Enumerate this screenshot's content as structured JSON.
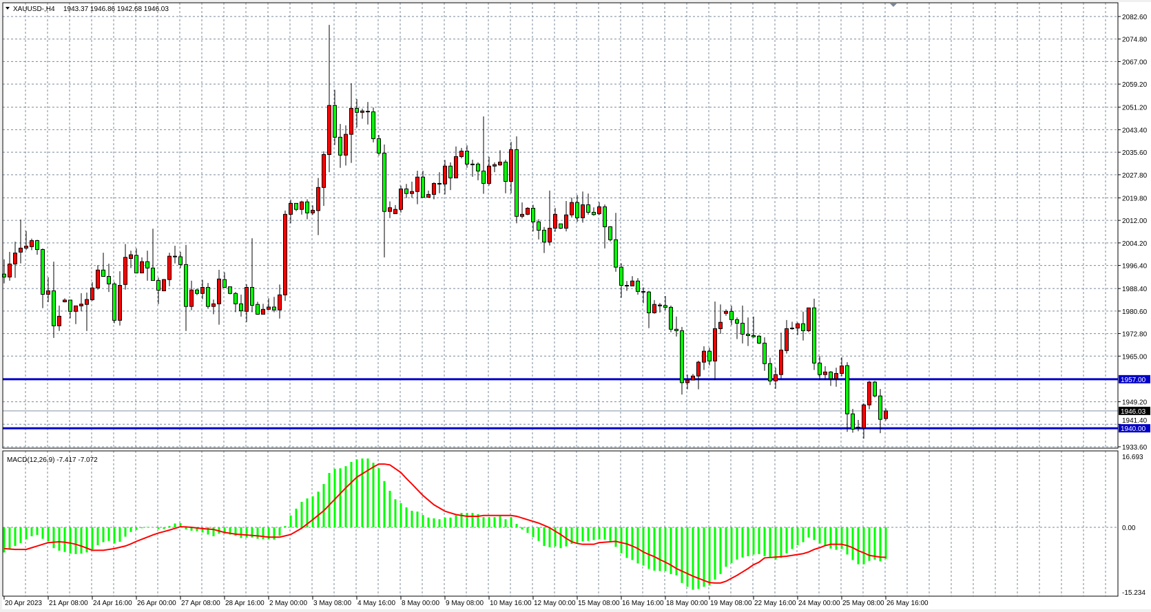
{
  "header": {
    "symbol": "XAUUSD-,H4",
    "ohlc": "1943.37 1946.86 1942.68 1946.03",
    "menu_icon": "triangle-down-icon"
  },
  "macd_header": {
    "label": "MACD(12,26,9) -7.417 -7.072"
  },
  "colors": {
    "bull": "#ff0000",
    "bear": "#00ff00",
    "grid": "#77889a",
    "level_line": "#0000c8",
    "bid_line": "#8090a0",
    "signal": "#ff0000",
    "histogram": "#00ff00"
  },
  "price_axis": {
    "labels": [
      "2082.60",
      "2074.80",
      "2067.00",
      "2059.20",
      "2051.20",
      "2043.40",
      "2035.60",
      "2027.80",
      "2019.80",
      "2012.00",
      "2004.20",
      "1996.40",
      "1988.40",
      "1980.60",
      "1972.80",
      "1965.00",
      "1949.20",
      "1941.40",
      "1933.60"
    ],
    "range": [
      1933.6,
      2082.6
    ]
  },
  "levels": [
    {
      "price": 1957.0,
      "label": "1957.00"
    },
    {
      "price": 1940.0,
      "label": "1940.00"
    }
  ],
  "bid": {
    "price": 1946.03,
    "label": "1946.03"
  },
  "macd_axis": {
    "labels": [
      {
        "value": 16.693,
        "text": "16.693"
      },
      {
        "value": 0,
        "text": "0.00"
      },
      {
        "value": -15.234,
        "text": "-15.234"
      }
    ]
  },
  "time_axis": {
    "labels": [
      "20 Apr 2023",
      "21 Apr 08:00",
      "24 Apr 16:00",
      "26 Apr 00:00",
      "27 Apr 08:00",
      "28 Apr 16:00",
      "2 May 00:00",
      "3 May 08:00",
      "4 May 16:00",
      "8 May 00:00",
      "9 May 08:00",
      "10 May 16:00",
      "12 May 00:00",
      "15 May 08:00",
      "16 May 16:00",
      "18 May 00:00",
      "19 May 08:00",
      "22 May 16:00",
      "24 May 00:00",
      "25 May 08:00",
      "26 May 16:00"
    ],
    "bars_per_label": 8
  },
  "chart_data": {
    "type": "candlestick",
    "timeframe": "H4",
    "ohlc": [
      [
        1993.4,
        1998.5,
        1990.2,
        1992.4
      ],
      [
        1992.4,
        2001.1,
        1991.1,
        1996.9
      ],
      [
        1996.9,
        2004.6,
        1992.1,
        2000.7
      ],
      [
        2001.0,
        2012.3,
        1997.1,
        2002.4
      ],
      [
        2002.4,
        2008.3,
        2001.7,
        2003.1
      ],
      [
        2002.9,
        2005.7,
        2001.7,
        2005.0
      ],
      [
        2005.0,
        2005.3,
        2000.1,
        2001.9
      ],
      [
        2001.9,
        2002.3,
        1981.6,
        1986.4
      ],
      [
        1986.4,
        1992.3,
        1983.7,
        1987.6
      ],
      [
        1987.6,
        1997.7,
        1971.3,
        1975.5
      ],
      [
        1975.5,
        1982.5,
        1973.7,
        1978.8
      ],
      [
        1983.8,
        1985.0,
        1983.6,
        1984.4
      ],
      [
        1984.4,
        1984.4,
        1978.1,
        1980.5
      ],
      [
        1980.5,
        1982.4,
        1976.1,
        1982.4
      ],
      [
        1982.4,
        1986.8,
        1980.5,
        1983.0
      ],
      [
        1982.9,
        1987.0,
        1973.7,
        1984.6
      ],
      [
        1984.5,
        1990.6,
        1984.2,
        1988.6
      ],
      [
        1988.6,
        1996.5,
        1988.0,
        1994.8
      ],
      [
        1994.8,
        2000.8,
        1992.6,
        1992.6
      ],
      [
        1992.6,
        1997.0,
        1987.2,
        1990.0
      ],
      [
        1990.0,
        1990.7,
        1976.4,
        1977.4
      ],
      [
        1977.4,
        1994.4,
        1975.6,
        1989.5
      ],
      [
        1989.8,
        2003.8,
        1988.0,
        1999.2
      ],
      [
        1998.8,
        2001.5,
        1995.5,
        2000.1
      ],
      [
        1999.9,
        2002.3,
        1993.8,
        1993.8
      ],
      [
        1993.8,
        1999.2,
        1993.8,
        1997.7
      ],
      [
        1997.7,
        2001.5,
        1991.1,
        1995.5
      ],
      [
        1995.5,
        2009.1,
        1991.2,
        1991.2
      ],
      [
        1991.2,
        1992.2,
        1983.0,
        1987.8
      ],
      [
        1987.6,
        1991.7,
        1987.6,
        1991.5
      ],
      [
        1991.5,
        2000.8,
        1989.2,
        1999.6
      ],
      [
        1999.4,
        2003.2,
        1997.1,
        1999.6
      ],
      [
        1999.4,
        2001.1,
        1995.5,
        1996.7
      ],
      [
        1996.7,
        2003.5,
        1973.7,
        1982.2
      ],
      [
        1982.2,
        1991.1,
        1980.9,
        1987.9
      ],
      [
        1987.9,
        1988.4,
        1986.1,
        1986.7
      ],
      [
        1986.7,
        1991.4,
        1984.7,
        1988.8
      ],
      [
        1988.8,
        1990.3,
        1981.4,
        1982.2
      ],
      [
        1982.2,
        1984.6,
        1979.5,
        1983.1
      ],
      [
        1983.1,
        1994.9,
        1975.9,
        1991.7
      ],
      [
        1991.5,
        1994.0,
        1988.8,
        1988.8
      ],
      [
        1989.0,
        1989.1,
        1986.4,
        1986.7
      ],
      [
        1986.7,
        1987.2,
        1980.2,
        1983.1
      ],
      [
        1983.1,
        1986.3,
        1978.7,
        1980.7
      ],
      [
        1980.5,
        1989.9,
        1976.8,
        1988.8
      ],
      [
        1988.8,
        2005.8,
        1980.2,
        1982.6
      ],
      [
        1982.9,
        1983.8,
        1979.3,
        1979.5
      ],
      [
        1979.5,
        1983.1,
        1979.5,
        1981.2
      ],
      [
        1981.2,
        1985.0,
        1981.0,
        1982.0
      ],
      [
        1982.0,
        1985.5,
        1980.2,
        1981.0
      ],
      [
        1981.0,
        1989.8,
        1978.0,
        1986.2
      ],
      [
        1986.2,
        2015.4,
        1984.1,
        2014.1
      ],
      [
        2014.1,
        2019.2,
        2011.0,
        2017.9
      ],
      [
        2017.9,
        2017.9,
        2015.2,
        2015.8
      ],
      [
        2015.8,
        2018.8,
        2014.0,
        2018.4
      ],
      [
        2018.4,
        2019.3,
        2012.4,
        2014.6
      ],
      [
        2014.6,
        2017.2,
        2013.9,
        2015.5
      ],
      [
        2015.4,
        2026.7,
        2006.9,
        2023.4
      ],
      [
        2023.4,
        2035.9,
        2017.0,
        2034.8
      ],
      [
        2034.8,
        2079.7,
        2028.7,
        2051.8
      ],
      [
        2051.8,
        2057.2,
        2038.1,
        2040.8
      ],
      [
        2040.8,
        2045.4,
        2030.2,
        2034.6
      ],
      [
        2034.6,
        2044.9,
        2031.0,
        2041.8
      ],
      [
        2041.8,
        2059.5,
        2031.9,
        2050.8
      ],
      [
        2050.8,
        2054.0,
        2044.2,
        2049.4
      ],
      [
        2049.4,
        2050.7,
        2047.2,
        2049.9
      ],
      [
        2049.6,
        2053.0,
        2045.2,
        2049.8
      ],
      [
        2049.6,
        2051.1,
        2039.0,
        2040.3
      ],
      [
        2040.3,
        2041.6,
        2034.4,
        2035.3
      ],
      [
        2035.3,
        2038.3,
        1999.2,
        2015.1
      ],
      [
        2015.1,
        2018.6,
        2012.8,
        2016.4
      ],
      [
        2014.3,
        2017.3,
        2014.3,
        2015.8
      ],
      [
        2015.8,
        2024.0,
        2014.7,
        2022.9
      ],
      [
        2022.9,
        2024.6,
        2019.7,
        2021.3
      ],
      [
        2021.3,
        2025.4,
        2019.8,
        2022.0
      ],
      [
        2022.0,
        2029.2,
        2017.6,
        2027.0
      ],
      [
        2027.0,
        2029.2,
        2020.0,
        2020.0
      ],
      [
        2020.0,
        2022.3,
        2020.0,
        2021.0
      ],
      [
        2021.0,
        2025.2,
        2019.3,
        2024.8
      ],
      [
        2024.6,
        2028.7,
        2021.4,
        2024.8
      ],
      [
        2024.6,
        2032.9,
        2021.0,
        2030.8
      ],
      [
        2030.8,
        2032.1,
        2022.5,
        2026.7
      ],
      [
        2026.7,
        2037.6,
        2026.7,
        2034.1
      ],
      [
        2034.1,
        2037.1,
        2033.5,
        2036.0
      ],
      [
        2036.0,
        2038.0,
        2030.2,
        2031.5
      ],
      [
        2031.4,
        2033.0,
        2027.1,
        2031.5
      ],
      [
        2031.5,
        2032.1,
        2025.9,
        2029.1
      ],
      [
        2029.1,
        2048.0,
        2021.2,
        2024.8
      ],
      [
        2024.8,
        2034.0,
        2024.1,
        2030.8
      ],
      [
        2030.8,
        2032.1,
        2028.7,
        2031.3
      ],
      [
        2031.2,
        2036.3,
        2030.9,
        2032.2
      ],
      [
        2032.2,
        2033.0,
        2021.4,
        2025.5
      ],
      [
        2025.5,
        2039.2,
        2021.4,
        2036.5
      ],
      [
        2036.5,
        2041.1,
        2011.0,
        2013.4
      ],
      [
        2013.4,
        2018.2,
        2012.7,
        2014.1
      ],
      [
        2014.1,
        2016.6,
        2013.8,
        2016.2
      ],
      [
        2016.2,
        2017.4,
        2008.2,
        2011.5
      ],
      [
        2011.5,
        2012.4,
        2005.4,
        2008.6
      ],
      [
        2008.6,
        2009.7,
        2000.7,
        2004.5
      ],
      [
        2004.5,
        2022.3,
        2003.3,
        2009.3
      ],
      [
        2009.3,
        2016.3,
        2008.1,
        2014.1
      ],
      [
        2010.8,
        2010.8,
        2009.0,
        2009.3
      ],
      [
        2009.3,
        2018.7,
        2008.2,
        2013.9
      ],
      [
        2013.9,
        2019.9,
        2013.0,
        2018.2
      ],
      [
        2018.2,
        2020.8,
        2011.5,
        2012.9
      ],
      [
        2012.9,
        2022.0,
        2011.2,
        2017.4
      ],
      [
        2017.4,
        2021.3,
        2014.0,
        2014.8
      ],
      [
        2014.8,
        2016.5,
        2013.6,
        2014.0
      ],
      [
        2014.3,
        2018.3,
        2013.9,
        2016.7
      ],
      [
        2016.7,
        2017.5,
        2002.3,
        2009.8
      ],
      [
        2009.8,
        2010.0,
        2004.7,
        2005.3
      ],
      [
        2005.3,
        2014.6,
        1994.2,
        1995.8
      ],
      [
        1995.8,
        1997.1,
        1985.2,
        1989.5
      ],
      [
        1989.5,
        1991.0,
        1987.6,
        1989.3
      ],
      [
        1989.3,
        1992.7,
        1989.3,
        1991.0
      ],
      [
        1991.0,
        1992.0,
        1986.3,
        1987.4
      ],
      [
        1987.4,
        1988.8,
        1983.3,
        1987.2
      ],
      [
        1987.2,
        1987.6,
        1974.7,
        1980.0
      ],
      [
        1980.0,
        1984.4,
        1979.7,
        1982.9
      ],
      [
        1982.4,
        1983.4,
        1980.1,
        1982.7
      ],
      [
        1982.5,
        1985.8,
        1980.9,
        1981.9
      ],
      [
        1981.9,
        1982.5,
        1973.3,
        1974.3
      ],
      [
        1974.3,
        1978.7,
        1971.8,
        1973.8
      ],
      [
        1973.8,
        1975.1,
        1951.7,
        1955.8
      ],
      [
        1955.8,
        1958.6,
        1953.5,
        1956.7
      ],
      [
        1956.7,
        1958.8,
        1956.7,
        1958.1
      ],
      [
        1958.1,
        1963.4,
        1953.5,
        1962.9
      ],
      [
        1962.9,
        1968.4,
        1960.2,
        1966.7
      ],
      [
        1966.7,
        1967.9,
        1961.8,
        1963.3
      ],
      [
        1963.3,
        1983.9,
        1956.7,
        1974.5
      ],
      [
        1974.5,
        1982.9,
        1972.7,
        1976.7
      ],
      [
        1979.8,
        1981.2,
        1979.0,
        1980.5
      ],
      [
        1980.5,
        1982.4,
        1975.7,
        1977.6
      ],
      [
        1977.6,
        1978.4,
        1970.9,
        1976.4
      ],
      [
        1976.4,
        1982.5,
        1969.4,
        1972.6
      ],
      [
        1972.6,
        1978.4,
        1968.5,
        1972.1
      ],
      [
        1972.1,
        1978.7,
        1971.4,
        1971.7
      ],
      [
        1971.9,
        1972.3,
        1969.2,
        1969.5
      ],
      [
        1969.5,
        1971.5,
        1959.9,
        1962.4
      ],
      [
        1962.4,
        1964.4,
        1955.0,
        1956.4
      ],
      [
        1956.4,
        1961.0,
        1953.7,
        1958.6
      ],
      [
        1958.6,
        1973.1,
        1957.3,
        1967.1
      ],
      [
        1966.9,
        1977.5,
        1965.9,
        1974.5
      ],
      [
        1974.5,
        1976.9,
        1974.1,
        1974.7
      ],
      [
        1974.7,
        1976.7,
        1972.3,
        1976.2
      ],
      [
        1976.2,
        1980.4,
        1970.4,
        1973.8
      ],
      [
        1973.8,
        1981.7,
        1973.3,
        1981.7
      ],
      [
        1981.7,
        1984.9,
        1960.2,
        1962.6
      ],
      [
        1962.6,
        1965.1,
        1956.8,
        1958.6
      ],
      [
        1958.6,
        1961.5,
        1956.8,
        1959.5
      ],
      [
        1959.5,
        1959.8,
        1954.7,
        1957.2
      ],
      [
        1957.2,
        1961.0,
        1954.4,
        1959.0
      ],
      [
        1959.0,
        1964.6,
        1958.0,
        1961.6
      ],
      [
        1961.7,
        1962.9,
        1938.8,
        1945.0
      ],
      [
        1945.0,
        1946.7,
        1938.5,
        1939.7
      ],
      [
        1940.1,
        1942.9,
        1939.0,
        1940.4
      ],
      [
        1940.1,
        1948.6,
        1936.4,
        1948.1
      ],
      [
        1948.1,
        1956.4,
        1946.6,
        1956.0
      ],
      [
        1956.0,
        1956.4,
        1950.7,
        1951.2
      ],
      [
        1951.2,
        1953.6,
        1938.3,
        1943.1
      ],
      [
        1943.37,
        1946.86,
        1942.68,
        1946.03
      ]
    ],
    "macd": {
      "name": "MACD(12,26,9)",
      "range": [
        -15.234,
        16.693
      ],
      "histogram": [
        -5.9,
        -5.1,
        -4.4,
        -3.7,
        -2.8,
        -2.1,
        -1.8,
        -2.7,
        -3.3,
        -4.9,
        -5.5,
        -5.8,
        -6.2,
        -6.3,
        -6.2,
        -5.9,
        -5.2,
        -4.2,
        -3.5,
        -3.2,
        -3.8,
        -3.4,
        -2.2,
        -1.1,
        -0.6,
        -0.2,
        0.1,
        0,
        -0.4,
        -0.4,
        0.3,
        0.9,
        1.0,
        -0.5,
        -0.8,
        -0.9,
        -1.2,
        -1.7,
        -2.1,
        -1.5,
        -1.5,
        -1.7,
        -2.0,
        -2.5,
        -2.4,
        -2.4,
        -2.7,
        -2.8,
        -2.8,
        -2.9,
        -2.0,
        0.3,
        2.8,
        4.4,
        6.0,
        6.8,
        7.3,
        8.4,
        10.2,
        12.8,
        13.8,
        13.9,
        14.4,
        15.4,
        16.0,
        16.2,
        16.2,
        15.2,
        13.9,
        10.9,
        8.6,
        6.6,
        5.7,
        4.7,
        3.9,
        3.7,
        2.9,
        2.3,
        2.1,
        1.9,
        2.3,
        2.3,
        2.8,
        3.4,
        3.4,
        3.4,
        3.1,
        2.4,
        2.4,
        2.4,
        2.6,
        1.9,
        2.4,
        0.8,
        -0.5,
        -1.3,
        -2.3,
        -3.2,
        -4.4,
        -4.7,
        -4.5,
        -4.9,
        -4.5,
        -3.9,
        -3.9,
        -3.3,
        -3.2,
        -3.0,
        -2.8,
        -2.9,
        -3.2,
        -4.6,
        -6.1,
        -7.2,
        -7.7,
        -8.5,
        -9.0,
        -9.8,
        -10.2,
        -10.3,
        -10.3,
        -11.0,
        -11.3,
        -13.1,
        -14.0,
        -14.7,
        -14.5,
        -14.0,
        -13.7,
        -12.3,
        -11.0,
        -9.3,
        -8.4,
        -7.6,
        -7.1,
        -6.8,
        -6.4,
        -6.3,
        -6.8,
        -7.2,
        -7.6,
        -7.2,
        -6.1,
        -5.1,
        -4.2,
        -3.5,
        -2.4,
        -3.0,
        -3.8,
        -4.3,
        -5.0,
        -5.3,
        -5.1,
        -6.4,
        -7.7,
        -8.7,
        -8.7,
        -7.9,
        -7.6,
        -8.0,
        -7.417
      ],
      "signal": [
        -5.0,
        -5.1,
        -5.2,
        -5.2,
        -5.2,
        -4.8,
        -4.4,
        -4.0,
        -3.6,
        -3.5,
        -3.4,
        -3.5,
        -3.7,
        -4.0,
        -4.4,
        -4.9,
        -5.4,
        -5.4,
        -5.4,
        -5.2,
        -5.0,
        -4.7,
        -4.4,
        -3.9,
        -3.3,
        -2.8,
        -2.3,
        -1.8,
        -1.35,
        -1.0,
        -0.65,
        -0.25,
        0.15,
        0.1,
        0,
        -0.15,
        -0.3,
        -0.4,
        -0.5,
        -0.85,
        -1.2,
        -1.4,
        -1.6,
        -1.7,
        -1.8,
        -1.9,
        -2.0,
        -2.15,
        -2.3,
        -2.3,
        -2.3,
        -2.0,
        -1.7,
        -0.95,
        -0.2,
        0.8,
        1.8,
        2.85,
        3.9,
        5.25,
        6.6,
        7.95,
        9.3,
        10.55,
        11.8,
        12.6,
        13.4,
        14.2,
        14.9,
        14.9,
        14.7,
        13.8,
        12.9,
        11.5,
        10.2,
        8.85,
        7.5,
        6.4,
        5.3,
        4.55,
        3.8,
        3.4,
        3.0,
        2.8,
        2.6,
        2.6,
        2.6,
        2.8,
        2.8,
        2.8,
        2.8,
        2.8,
        2.8,
        2.6,
        2.2,
        1.8,
        1.4,
        1.0,
        0.45,
        -0.1,
        -0.9,
        -1.7,
        -2.6,
        -3.4,
        -3.8,
        -4.0,
        -4.0,
        -4.0,
        -3.6,
        -3.5,
        -3.4,
        -3.3,
        -3.6,
        -3.9,
        -4.4,
        -5.0,
        -5.8,
        -6.4,
        -6.9,
        -7.6,
        -8.2,
        -8.9,
        -9.7,
        -10.3,
        -10.9,
        -11.5,
        -12.0,
        -12.5,
        -13.0,
        -13.1,
        -13.1,
        -12.7,
        -12.0,
        -11.3,
        -10.5,
        -9.7,
        -8.8,
        -8.2,
        -7.2,
        -7.1,
        -7.0,
        -6.9,
        -6.8,
        -6.6,
        -6.4,
        -6.2,
        -5.8,
        -5.2,
        -4.8,
        -4.3,
        -4.0,
        -4.0,
        -4.0,
        -4.3,
        -4.8,
        -5.5,
        -6.0,
        -6.6,
        -6.8,
        -7.0,
        -7.072
      ]
    }
  }
}
